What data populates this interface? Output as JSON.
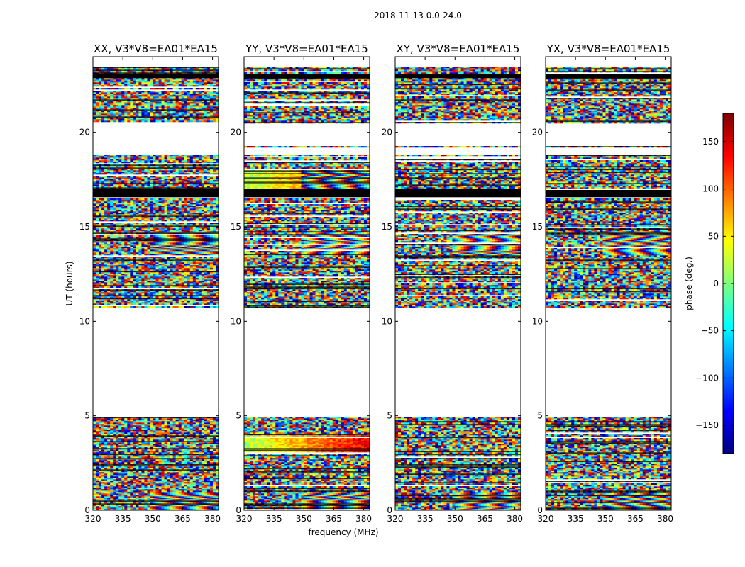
{
  "chart_data": {
    "type": "heatmap",
    "suptitle": "2018-11-13 0.0-24.0",
    "xlabel": "frequency (MHz)",
    "ylabel": "UT (hours)",
    "xlim": [
      320,
      383
    ],
    "ylim": [
      0,
      24
    ],
    "xticks": [
      320,
      335,
      350,
      365,
      380
    ],
    "yticks": [
      0,
      5,
      10,
      15,
      20
    ],
    "panels": [
      {
        "title": "XX, V3*V8=EA01*EA15",
        "correlation": "XX"
      },
      {
        "title": "YY, V3*V8=EA01*EA15",
        "correlation": "YY"
      },
      {
        "title": "XY, V3*V8=EA01*EA15",
        "correlation": "XY"
      },
      {
        "title": "YX, V3*V8=EA01*EA15",
        "correlation": "YX"
      }
    ],
    "data_time_ranges_hours": [
      [
        0.0,
        4.95
      ],
      [
        10.7,
        16.5
      ],
      [
        16.55,
        18.8
      ],
      [
        19.2,
        19.3
      ],
      [
        20.5,
        23.5
      ]
    ],
    "no_data_time_ranges_hours": [
      [
        4.95,
        10.7
      ],
      [
        19.3,
        20.5
      ],
      [
        23.5,
        24.0
      ]
    ],
    "flagged_time_ranges_hours": [
      [
        16.6,
        17.0
      ],
      [
        18.9,
        19.0
      ],
      [
        22.9,
        23.1
      ]
    ],
    "colorbar": {
      "label": "phase (deg.)",
      "range": [
        -180,
        180
      ],
      "ticks": [
        -150,
        -100,
        -50,
        0,
        50,
        100,
        150
      ],
      "tick_labels": [
        "−150",
        "−100",
        "−50",
        "0",
        "50",
        "100",
        "150"
      ],
      "colormap": "jet",
      "colors": [
        "#00007f",
        "#0000ff",
        "#007fff",
        "#00ffff",
        "#7fff7f",
        "#ffff00",
        "#ff7f00",
        "#ff0000",
        "#7f0000"
      ]
    }
  }
}
